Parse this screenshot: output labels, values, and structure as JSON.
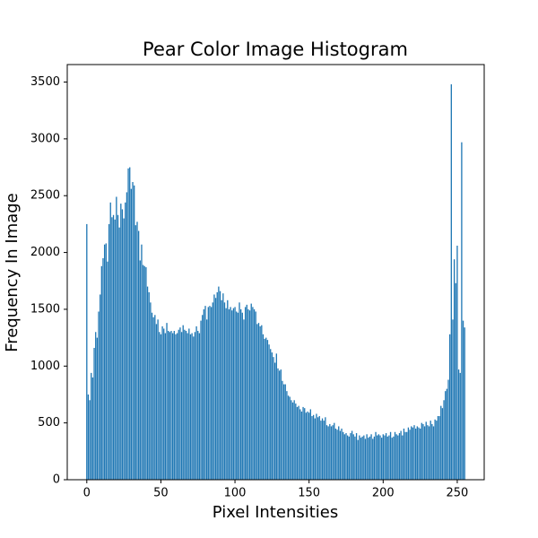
{
  "chart_data": {
    "type": "bar",
    "title": "Pear Color Image Histogram",
    "xlabel": "Pixel Intensities",
    "ylabel": "Frequency In Image",
    "color": "#1f77b4",
    "bar_width": 0.8,
    "x": [
      0,
      1,
      2,
      3,
      4,
      5,
      6,
      7,
      8,
      9,
      10,
      11,
      12,
      13,
      14,
      15,
      16,
      17,
      18,
      19,
      20,
      21,
      22,
      23,
      24,
      25,
      26,
      27,
      28,
      29,
      30,
      31,
      32,
      33,
      34,
      35,
      36,
      37,
      38,
      39,
      40,
      41,
      42,
      43,
      44,
      45,
      46,
      47,
      48,
      49,
      50,
      51,
      52,
      53,
      54,
      55,
      56,
      57,
      58,
      59,
      60,
      61,
      62,
      63,
      64,
      65,
      66,
      67,
      68,
      69,
      70,
      71,
      72,
      73,
      74,
      75,
      76,
      77,
      78,
      79,
      80,
      81,
      82,
      83,
      84,
      85,
      86,
      87,
      88,
      89,
      90,
      91,
      92,
      93,
      94,
      95,
      96,
      97,
      98,
      99,
      100,
      101,
      102,
      103,
      104,
      105,
      106,
      107,
      108,
      109,
      110,
      111,
      112,
      113,
      114,
      115,
      116,
      117,
      118,
      119,
      120,
      121,
      122,
      123,
      124,
      125,
      126,
      127,
      128,
      129,
      130,
      131,
      132,
      133,
      134,
      135,
      136,
      137,
      138,
      139,
      140,
      141,
      142,
      143,
      144,
      145,
      146,
      147,
      148,
      149,
      150,
      151,
      152,
      153,
      154,
      155,
      156,
      157,
      158,
      159,
      160,
      161,
      162,
      163,
      164,
      165,
      166,
      167,
      168,
      169,
      170,
      171,
      172,
      173,
      174,
      175,
      176,
      177,
      178,
      179,
      180,
      181,
      182,
      183,
      184,
      185,
      186,
      187,
      188,
      189,
      190,
      191,
      192,
      193,
      194,
      195,
      196,
      197,
      198,
      199,
      200,
      201,
      202,
      203,
      204,
      205,
      206,
      207,
      208,
      209,
      210,
      211,
      212,
      213,
      214,
      215,
      216,
      217,
      218,
      219,
      220,
      221,
      222,
      223,
      224,
      225,
      226,
      227,
      228,
      229,
      230,
      231,
      232,
      233,
      234,
      235,
      236,
      237,
      238,
      239,
      240,
      241,
      242,
      243,
      244,
      245,
      246,
      247,
      248,
      249,
      250,
      251,
      252,
      253,
      254,
      255
    ],
    "values": [
      2250,
      750,
      700,
      940,
      900,
      1160,
      1300,
      1250,
      1480,
      1630,
      1880,
      1950,
      2070,
      2080,
      1920,
      2250,
      2440,
      2310,
      2330,
      2290,
      2490,
      2330,
      2220,
      2430,
      2380,
      2300,
      2440,
      2530,
      2740,
      2750,
      2560,
      2620,
      2590,
      2240,
      2270,
      2190,
      1930,
      2070,
      1890,
      1880,
      1870,
      1700,
      1650,
      1560,
      1470,
      1430,
      1450,
      1370,
      1410,
      1300,
      1280,
      1350,
      1330,
      1290,
      1380,
      1310,
      1300,
      1310,
      1290,
      1310,
      1280,
      1290,
      1320,
      1340,
      1300,
      1360,
      1320,
      1310,
      1290,
      1330,
      1280,
      1290,
      1260,
      1300,
      1350,
      1310,
      1290,
      1400,
      1450,
      1500,
      1530,
      1410,
      1520,
      1530,
      1520,
      1560,
      1630,
      1600,
      1650,
      1700,
      1660,
      1580,
      1640,
      1560,
      1510,
      1580,
      1500,
      1520,
      1490,
      1510,
      1520,
      1480,
      1470,
      1560,
      1500,
      1470,
      1410,
      1520,
      1540,
      1500,
      1490,
      1550,
      1520,
      1500,
      1480,
      1370,
      1380,
      1350,
      1360,
      1280,
      1240,
      1250,
      1230,
      1190,
      1150,
      1120,
      1080,
      1030,
      1110,
      980,
      960,
      970,
      870,
      840,
      840,
      780,
      740,
      730,
      700,
      680,
      700,
      670,
      640,
      650,
      620,
      600,
      640,
      630,
      590,
      600,
      590,
      620,
      560,
      570,
      540,
      580,
      550,
      560,
      520,
      540,
      520,
      550,
      480,
      470,
      490,
      470,
      480,
      500,
      450,
      440,
      470,
      430,
      450,
      420,
      400,
      410,
      390,
      380,
      410,
      430,
      400,
      380,
      410,
      350,
      390,
      370,
      380,
      390,
      360,
      400,
      370,
      380,
      400,
      360,
      380,
      420,
      390,
      400,
      390,
      370,
      400,
      390,
      410,
      380,
      390,
      420,
      370,
      380,
      420,
      400,
      390,
      410,
      430,
      390,
      450,
      420,
      420,
      460,
      440,
      470,
      460,
      480,
      450,
      470,
      460,
      450,
      500,
      490,
      470,
      510,
      480,
      470,
      520,
      490,
      470,
      530,
      520,
      560,
      560,
      650,
      630,
      700,
      780,
      800,
      880,
      1280,
      3480,
      1410,
      1940,
      1730,
      2060,
      970,
      940,
      2970,
      1400,
      1340
    ],
    "xlim": [
      -13.19,
      268.19
    ],
    "ylim": [
      0,
      3654
    ],
    "xticks": [
      0,
      50,
      100,
      150,
      200,
      250
    ],
    "yticks": [
      0,
      500,
      1000,
      1500,
      2000,
      2500,
      3000,
      3500
    ]
  }
}
